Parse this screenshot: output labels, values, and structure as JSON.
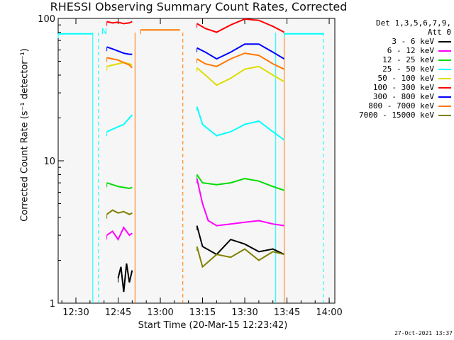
{
  "chart_data": {
    "type": "line",
    "title": "RHESSI Observing Summary Count Rates, Corrected",
    "xlabel": "Start Time (20-Mar-15 12:23:42)",
    "ylabel": "Corrected Count Rate (s⁻¹ detector⁻¹)",
    "y_scale": "log",
    "ylim": [
      1,
      100
    ],
    "xlim": [
      "12:23:42",
      "14:02:00"
    ],
    "x_ticks": [
      "12:30",
      "12:45",
      "13:00",
      "13:15",
      "13:30",
      "13:45",
      "14:00"
    ],
    "y_ticks": [
      "1",
      "10",
      "100"
    ],
    "legend_header": [
      "Det 1,3,5,6,7,9,",
      "Att 0"
    ],
    "legend_position": "right",
    "annotation_flag": "N",
    "timestamp": "27-Oct-2021 13:37",
    "series": [
      {
        "name": "3 - 6 keV",
        "color": "#000000",
        "segments": [
          {
            "t": [
              "12:45",
              "12:46",
              "12:47",
              "12:48",
              "12:49",
              "12:50"
            ],
            "v": [
              1.5,
              1.8,
              1.2,
              1.9,
              1.4,
              1.7
            ]
          },
          {
            "t": [
              "13:13",
              "13:15",
              "13:20",
              "13:25",
              "13:30",
              "13:35",
              "13:40",
              "13:44"
            ],
            "v": [
              3.5,
              2.5,
              2.2,
              2.8,
              2.6,
              2.3,
              2.4,
              2.2
            ]
          }
        ]
      },
      {
        "name": "6 - 12 keV",
        "color": "#ff00ff",
        "segments": [
          {
            "t": [
              "12:41",
              "12:43",
              "12:45",
              "12:47",
              "12:49",
              "12:50"
            ],
            "v": [
              3.0,
              3.2,
              2.8,
              3.4,
              3.0,
              3.1
            ]
          },
          {
            "t": [
              "13:13",
              "13:15",
              "13:17",
              "13:20",
              "13:25",
              "13:30",
              "13:35",
              "13:40",
              "13:44"
            ],
            "v": [
              7.5,
              5.0,
              3.8,
              3.5,
              3.6,
              3.7,
              3.8,
              3.6,
              3.5
            ]
          }
        ]
      },
      {
        "name": "12 - 25 keV",
        "color": "#00dd00",
        "segments": [
          {
            "t": [
              "12:41",
              "12:43",
              "12:45",
              "12:47",
              "12:49",
              "12:50"
            ],
            "v": [
              7.0,
              6.8,
              6.6,
              6.5,
              6.4,
              6.5
            ]
          },
          {
            "t": [
              "13:13",
              "13:15",
              "13:20",
              "13:25",
              "13:30",
              "13:35",
              "13:40",
              "13:44"
            ],
            "v": [
              8.0,
              7.0,
              6.8,
              7.0,
              7.5,
              7.2,
              6.6,
              6.2
            ]
          }
        ]
      },
      {
        "name": "25 - 50 keV",
        "color": "#00ffff",
        "segments": [
          {
            "t": [
              "12:23:42",
              "12:36"
            ],
            "v": [
              78,
              78
            ]
          },
          {
            "t": [
              "12:41",
              "12:44",
              "12:47",
              "12:50"
            ],
            "v": [
              16,
              17,
              18,
              21
            ]
          },
          {
            "t": [
              "13:13",
              "13:15",
              "13:20",
              "13:25",
              "13:30",
              "13:35",
              "13:40",
              "13:44"
            ],
            "v": [
              24,
              18,
              15,
              16,
              18,
              19,
              16,
              14
            ]
          },
          {
            "t": [
              "13:44",
              "13:58"
            ],
            "v": [
              78,
              78
            ]
          }
        ]
      },
      {
        "name": "50 - 100 keV",
        "color": "#dddd00",
        "segments": [
          {
            "t": [
              "12:41",
              "12:43",
              "12:45",
              "12:47",
              "12:49",
              "12:50"
            ],
            "v": [
              46,
              47,
              48,
              49,
              48,
              47
            ]
          },
          {
            "t": [
              "13:13",
              "13:16",
              "13:20",
              "13:25",
              "13:30",
              "13:35",
              "13:40",
              "13:44"
            ],
            "v": [
              45,
              40,
              34,
              38,
              44,
              46,
              40,
              36
            ]
          }
        ]
      },
      {
        "name": "100 - 300 keV",
        "color": "#ff0000",
        "segments": [
          {
            "t": [
              "12:41",
              "12:43",
              "12:45",
              "12:47",
              "12:49",
              "12:50"
            ],
            "v": [
              95,
              93,
              94,
              92,
              93,
              95
            ]
          },
          {
            "t": [
              "13:13",
              "13:16",
              "13:20",
              "13:25",
              "13:30",
              "13:35",
              "13:40",
              "13:44"
            ],
            "v": [
              92,
              85,
              80,
              90,
              99,
              97,
              88,
              80
            ]
          }
        ]
      },
      {
        "name": "300 - 800 keV",
        "color": "#0000ff",
        "segments": [
          {
            "t": [
              "12:41",
              "12:43",
              "12:45",
              "12:47",
              "12:49",
              "12:50"
            ],
            "v": [
              63,
              61,
              59,
              57,
              56,
              56
            ]
          },
          {
            "t": [
              "13:13",
              "13:16",
              "13:20",
              "13:25",
              "13:30",
              "13:35",
              "13:40",
              "13:44"
            ],
            "v": [
              62,
              58,
              52,
              58,
              66,
              66,
              58,
              52
            ]
          }
        ]
      },
      {
        "name": "800 - 7000 keV",
        "color": "#ff7700",
        "segments": [
          {
            "t": [
              "12:41",
              "12:43",
              "12:45",
              "12:47",
              "12:49",
              "12:50"
            ],
            "v": [
              53,
              52,
              51,
              49,
              47,
              45
            ]
          },
          {
            "t": [
              "12:53",
              "13:07"
            ],
            "v": [
              83,
              83
            ]
          },
          {
            "t": [
              "13:13",
              "13:16",
              "13:20",
              "13:25",
              "13:30",
              "13:35",
              "13:40",
              "13:44"
            ],
            "v": [
              52,
              48,
              46,
              52,
              57,
              55,
              48,
              44
            ]
          }
        ]
      },
      {
        "name": "7000 - 15000 keV",
        "color": "#808000",
        "segments": [
          {
            "t": [
              "12:41",
              "12:43",
              "12:45",
              "12:47",
              "12:49",
              "12:50"
            ],
            "v": [
              4.2,
              4.5,
              4.3,
              4.4,
              4.2,
              4.3
            ]
          },
          {
            "t": [
              "13:13",
              "13:15",
              "13:20",
              "13:25",
              "13:30",
              "13:35",
              "13:40",
              "13:44"
            ],
            "v": [
              2.5,
              1.8,
              2.2,
              2.1,
              2.4,
              2.0,
              2.3,
              2.2
            ]
          }
        ]
      }
    ],
    "vertical_lines": [
      {
        "t": "12:36",
        "color": "#00ffff",
        "style": "solid"
      },
      {
        "t": "12:38",
        "color": "#00ffff",
        "style": "dashed"
      },
      {
        "t": "12:51",
        "color": "#ff7700",
        "style": "solid"
      },
      {
        "t": "13:08",
        "color": "#ff7700",
        "style": "dashed"
      },
      {
        "t": "13:41",
        "color": "#00ffff",
        "style": "solid"
      },
      {
        "t": "13:44",
        "color": "#ff7700",
        "style": "solid"
      },
      {
        "t": "13:58",
        "color": "#00ffff",
        "style": "dashed"
      }
    ]
  }
}
